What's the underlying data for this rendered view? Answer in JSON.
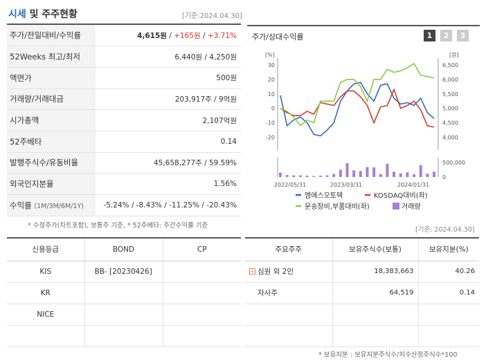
{
  "header": {
    "title_accent": "시세",
    "title_rest": " 및 주주현황",
    "date": "[기준:2024.04.30]"
  },
  "price_rows": [
    {
      "label": "주가/전일대비/수익률",
      "price": "4,615원",
      "change": "+165원",
      "rate": "+3.71%"
    },
    {
      "label": "52Weeks 최고/최저",
      "value": "6,440원 / 4,250원"
    },
    {
      "label": "액면가",
      "value": "500원"
    },
    {
      "label": "거래량/거래대금",
      "value": "203,917주 / 9억원"
    },
    {
      "label": "시가총액",
      "value": "2,107억원"
    },
    {
      "label": "52주베타",
      "value": "0.14"
    },
    {
      "label": "발행주식수/유동비율",
      "value": "45,658,277주 / 59.59%"
    },
    {
      "label": "외국인지분율",
      "value": "1.56%"
    },
    {
      "label": "수익률",
      "label_sub": "(1M/3M/6M/1Y)",
      "value": "-5.24% / -8.43% / -11.25% / -20.43%"
    }
  ],
  "note1": "* 수정주가(차트포함), 보통주 기준, * 52주베타: 주간수익률 기준",
  "chart_panel": {
    "title": "주가/상대수익률",
    "pages": [
      "1",
      "2",
      "3"
    ]
  },
  "chart_data": {
    "type": "line",
    "left_unit": "[%]",
    "right_unit": "[원]",
    "left_ticks": [
      "30",
      "20",
      "10",
      "0",
      "-10",
      "-20"
    ],
    "right_ticks": [
      "6,500",
      "6,000",
      "5,500",
      "5,000",
      "4,500",
      "4,000"
    ],
    "vol_ticks": [
      "500,000",
      "0"
    ],
    "x_labels": [
      "2022/05/31",
      "2023/03/31",
      "2024/01/31"
    ],
    "ylim": [
      -25,
      30
    ],
    "series": [
      {
        "name": "엠에스오토텍",
        "color": "#2d6bbf",
        "values": [
          9,
          -12,
          -8,
          -6,
          -10,
          -18,
          -19,
          -15,
          -10,
          5,
          12,
          17,
          18,
          10,
          5,
          16,
          17,
          7,
          3,
          4,
          2,
          7,
          -3,
          -7
        ]
      },
      {
        "name": "KOSDAQ대비(좌)",
        "color": "#d63a2a",
        "values": [
          0,
          -3,
          -5,
          -5,
          -2,
          -4,
          4,
          3,
          2,
          8,
          12,
          12,
          8,
          2,
          -10,
          1,
          2,
          13,
          0,
          2,
          5,
          -1,
          -12,
          -13
        ]
      },
      {
        "name": "운송장비,부품대비(좌)",
        "color": "#8fc73e",
        "values": [
          0,
          -2,
          -6,
          -12,
          -8,
          -10,
          5,
          5,
          5,
          18,
          20,
          20,
          15,
          5,
          20,
          20,
          27,
          25,
          26,
          28,
          31,
          23,
          22,
          21
        ]
      }
    ],
    "volume": {
      "name": "거래량",
      "color": "#a77fd4",
      "values": [
        130000,
        60000,
        50000,
        50000,
        40000,
        30000,
        40000,
        50000,
        90000,
        220000,
        420000,
        200000,
        180000,
        300000,
        290000,
        90000,
        400000,
        160000,
        110000,
        140000,
        80000,
        360000,
        100000,
        160000
      ]
    }
  },
  "note_date2": "[기준: 2024.04.30]",
  "credit": {
    "headers": [
      "신용등급",
      "BOND",
      "CP"
    ],
    "rows": [
      {
        "agency": "KIS",
        "bond": "BB-  [20230426]",
        "cp": ""
      },
      {
        "agency": "KR",
        "bond": "",
        "cp": ""
      },
      {
        "agency": "NICE",
        "bond": "",
        "cp": ""
      },
      {
        "agency": "",
        "bond": "",
        "cp": ""
      }
    ]
  },
  "holders": {
    "headers": [
      "주요주주",
      "보유주식수(보통)",
      "보유지분(%)"
    ],
    "rows": [
      {
        "name": "심원 외 2인",
        "shares": "18,383,663",
        "pct": "40.26",
        "expand": "+"
      },
      {
        "name": "자사주",
        "shares": "64,519",
        "pct": "0.14"
      },
      {
        "name": "",
        "shares": "",
        "pct": ""
      },
      {
        "name": "",
        "shares": "",
        "pct": ""
      }
    ]
  },
  "note3": "* 보유지분 : 보유지분주식수/지수산정주식수*100"
}
